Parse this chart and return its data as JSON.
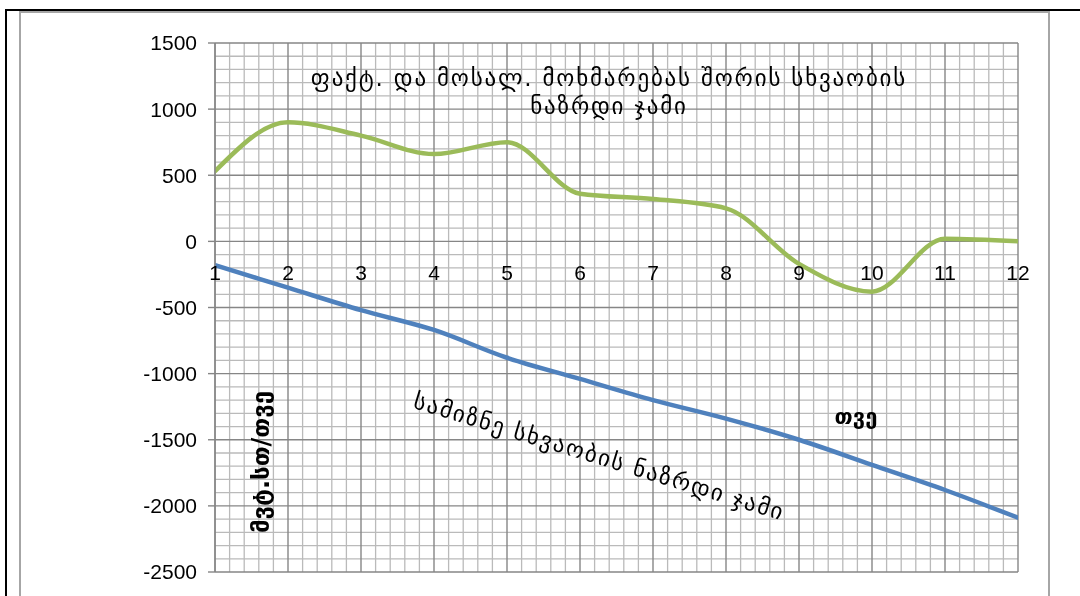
{
  "chart_data": {
    "type": "line",
    "xlabel": "თვე",
    "ylabel": "მვტ.სთ/თვე",
    "x": [
      1,
      2,
      3,
      4,
      5,
      6,
      7,
      8,
      9,
      10,
      11,
      12
    ],
    "xlim": [
      1,
      12
    ],
    "xticks": [
      1,
      2,
      3,
      4,
      5,
      6,
      7,
      8,
      9,
      10,
      11,
      12
    ],
    "ylim": [
      -2500,
      1500
    ],
    "yticks": [
      -2500,
      -2000,
      -1500,
      -1000,
      -500,
      0,
      500,
      1000,
      1500
    ],
    "grid": true,
    "marker": "none",
    "line_style": "solid",
    "series": [
      {
        "name": "ფაქტ. და მოსალ. მოხმარებას შორის სხვაობის ნაზრდი ჯამი",
        "color": "#9bbb59",
        "values": [
          530,
          900,
          800,
          660,
          750,
          360,
          320,
          250,
          -170,
          -380,
          20,
          0
        ]
      },
      {
        "name": "სამიზნე სხვაობის ნაზრდი ჯამი",
        "color": "#4f81bd",
        "values": [
          -180,
          -350,
          -520,
          -670,
          -880,
          -1040,
          -1200,
          -1340,
          -1500,
          -1690,
          -1880,
          -2090
        ]
      }
    ]
  }
}
